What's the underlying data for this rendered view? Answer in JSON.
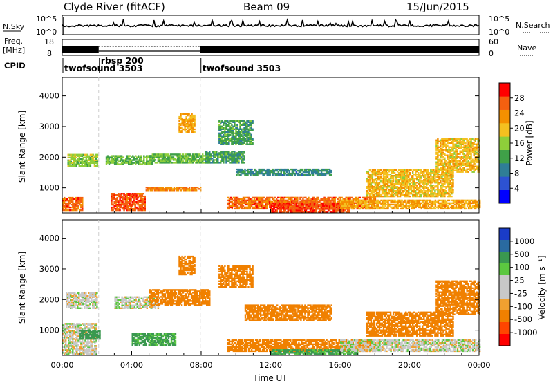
{
  "header": {
    "station": "Clyde River (fitACF)",
    "beam": "Beam 09",
    "date": "15/Jun/2015"
  },
  "top_panels": {
    "nsky_label": "N.Sky",
    "nsky_ticks": [
      "10^5",
      "10^0"
    ],
    "nsearch_label": "N.Search",
    "freq_label_line1": "Freq.",
    "freq_label_line2": "[MHz]",
    "freq_ticks": [
      "18",
      "8"
    ],
    "nave_ticks": [
      "60",
      "0"
    ],
    "nave_label": "Nave",
    "cpid_label": "CPID",
    "cpid_segments": [
      {
        "name": "twofsound 3503",
        "start_hour": 0.0,
        "end_hour": 2.1
      },
      {
        "name": "rbsp 200",
        "start_hour": 2.1,
        "end_hour": 7.95
      },
      {
        "name": "twofsound 3503",
        "start_hour": 7.95,
        "end_hour": 24.0
      }
    ]
  },
  "colors": {
    "power_scale": [
      "#0000ff",
      "#2d52d2",
      "#2f7e96",
      "#3fa048",
      "#8ece3a",
      "#f4c020",
      "#f49000",
      "#f46010",
      "#ff0000"
    ],
    "velocity_scale": [
      "#ff0000",
      "#ff4500",
      "#f08000",
      "#f0a030",
      "#c8c8c8",
      "#c8c8c8",
      "#5cc840",
      "#3a9850",
      "#2a6aa0",
      "#1a3cc8"
    ]
  },
  "chart_data": [
    {
      "type": "heatmap",
      "title": "Power",
      "ylabel": "Slant Range [km]",
      "xlabel": "",
      "xlim_hours": [
        0,
        24
      ],
      "ylim_km": [
        180,
        4600
      ],
      "yticks": [
        "1000",
        "2000",
        "3000",
        "4000"
      ],
      "colorbar_label": "Power [dB]",
      "colorbar_ticks": [
        "4",
        "8",
        "12",
        "16",
        "20",
        "24",
        "28"
      ],
      "colorbar_range": [
        0,
        32
      ],
      "bands": [
        {
          "t0": 0.0,
          "t1": 1.2,
          "r0": 250,
          "r1": 700,
          "value": 26
        },
        {
          "t0": 0.3,
          "t1": 2.0,
          "r0": 1700,
          "r1": 2100,
          "value": 16
        },
        {
          "t0": 2.5,
          "t1": 5.2,
          "r0": 1750,
          "r1": 2050,
          "value": 14
        },
        {
          "t0": 2.8,
          "t1": 4.8,
          "r0": 250,
          "r1": 800,
          "value": 27
        },
        {
          "t0": 4.8,
          "t1": 8.0,
          "r0": 900,
          "r1": 1000,
          "value": 24
        },
        {
          "t0": 5.0,
          "t1": 8.5,
          "r0": 1800,
          "r1": 2100,
          "value": 14
        },
        {
          "t0": 6.7,
          "t1": 7.6,
          "r0": 2800,
          "r1": 3400,
          "value": 22
        },
        {
          "t0": 9.0,
          "t1": 11.0,
          "r0": 2400,
          "r1": 3200,
          "value": 12
        },
        {
          "t0": 8.2,
          "t1": 10.5,
          "r0": 1800,
          "r1": 2200,
          "value": 12
        },
        {
          "t0": 10.0,
          "t1": 15.5,
          "r0": 1400,
          "r1": 1600,
          "value": 10
        },
        {
          "t0": 9.5,
          "t1": 18.0,
          "r0": 300,
          "r1": 700,
          "value": 26
        },
        {
          "t0": 12.0,
          "t1": 16.5,
          "r0": 200,
          "r1": 500,
          "value": 28
        },
        {
          "t0": 16.0,
          "t1": 24.0,
          "r0": 300,
          "r1": 600,
          "value": 22
        },
        {
          "t0": 17.5,
          "t1": 22.5,
          "r0": 700,
          "r1": 1600,
          "value": 20
        },
        {
          "t0": 21.5,
          "t1": 24.0,
          "r0": 1500,
          "r1": 2600,
          "value": 20
        }
      ]
    },
    {
      "type": "heatmap",
      "title": "Velocity",
      "ylabel": "Slant Range [km]",
      "xlabel": "Time UT",
      "xlim_hours": [
        0,
        24
      ],
      "xticks": [
        "00:00",
        "04:00",
        "08:00",
        "12:00",
        "16:00",
        "20:00",
        "00:00"
      ],
      "ylim_km": [
        180,
        4600
      ],
      "yticks": [
        "1000",
        "2000",
        "3000",
        "4000"
      ],
      "colorbar_label": "Velocity [m s⁻¹]",
      "colorbar_ticks": [
        "1000",
        "500",
        "100",
        "25",
        "-25",
        "-100",
        "-500",
        "-1000"
      ],
      "bands": [
        {
          "t0": 0.0,
          "t1": 2.0,
          "r0": 200,
          "r1": 1200,
          "value": 0
        },
        {
          "t0": 0.2,
          "t1": 2.0,
          "r0": 1700,
          "r1": 2200,
          "value": 0
        },
        {
          "t0": 1.0,
          "t1": 2.2,
          "r0": 700,
          "r1": 1000,
          "value": 150
        },
        {
          "t0": 3.0,
          "t1": 5.5,
          "r0": 1700,
          "r1": 2100,
          "value": 0
        },
        {
          "t0": 4.0,
          "t1": 6.5,
          "r0": 500,
          "r1": 900,
          "value": 120
        },
        {
          "t0": 5.0,
          "t1": 8.5,
          "r0": 1800,
          "r1": 2300,
          "value": -150
        },
        {
          "t0": 6.7,
          "t1": 7.6,
          "r0": 2800,
          "r1": 3400,
          "value": -200
        },
        {
          "t0": 9.0,
          "t1": 11.0,
          "r0": 2400,
          "r1": 3100,
          "value": -200
        },
        {
          "t0": 10.5,
          "t1": 15.5,
          "r0": 1300,
          "r1": 1800,
          "value": -300
        },
        {
          "t0": 9.5,
          "t1": 18.0,
          "r0": 300,
          "r1": 700,
          "value": -400
        },
        {
          "t0": 12.0,
          "t1": 17.0,
          "r0": 200,
          "r1": 350,
          "value": 120
        },
        {
          "t0": 16.0,
          "t1": 24.0,
          "r0": 300,
          "r1": 700,
          "value": 0
        },
        {
          "t0": 17.5,
          "t1": 22.5,
          "r0": 800,
          "r1": 1600,
          "value": -450
        },
        {
          "t0": 21.5,
          "t1": 24.0,
          "r0": 1500,
          "r1": 2600,
          "value": -450
        }
      ]
    }
  ]
}
